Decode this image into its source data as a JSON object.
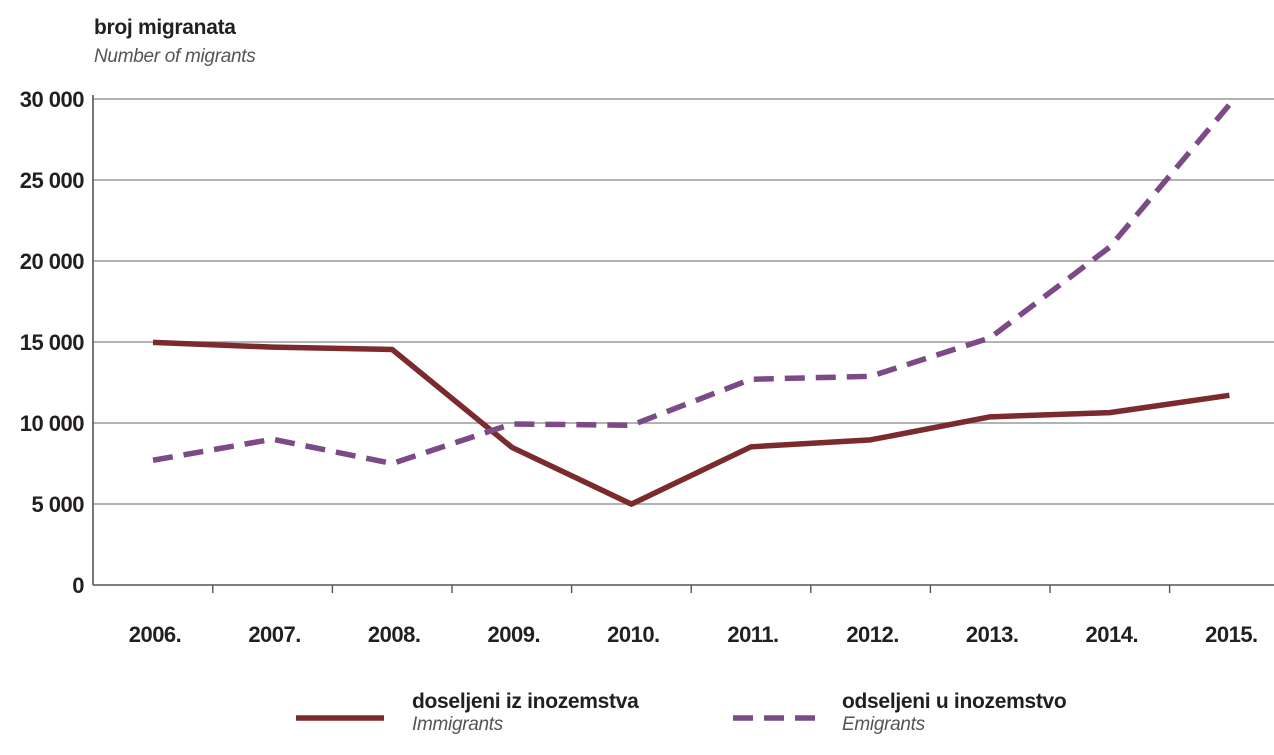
{
  "chart_data": {
    "type": "line",
    "ylabel": "broj migranata",
    "ylabel_en": "Number of migrants",
    "categories": [
      "2006.",
      "2007.",
      "2008.",
      "2009.",
      "2010.",
      "2011.",
      "2012.",
      "2013.",
      "2014.",
      "2015."
    ],
    "ylim": [
      0,
      30000
    ],
    "yticks": [
      0,
      5000,
      10000,
      15000,
      20000,
      25000,
      30000
    ],
    "ytick_labels": [
      "0",
      "5 000",
      "10 000",
      "15 000",
      "20 000",
      "25 000",
      "30 000"
    ],
    "grid": true,
    "legend_position": "bottom",
    "series": [
      {
        "name": "doseljeni iz inozemstva",
        "name_en": "Immigrants",
        "style": "solid",
        "color": "#7b2a2e",
        "values": [
          14980,
          14680,
          14540,
          8500,
          4990,
          8530,
          8960,
          10380,
          10640,
          11710
        ]
      },
      {
        "name": "odseljeni u inozemstvo",
        "name_en": "Emigrants",
        "style": "dashed",
        "color": "#7c4a86",
        "values": [
          7700,
          9000,
          7500,
          9940,
          9860,
          12700,
          12880,
          15260,
          20860,
          29650
        ]
      }
    ]
  }
}
